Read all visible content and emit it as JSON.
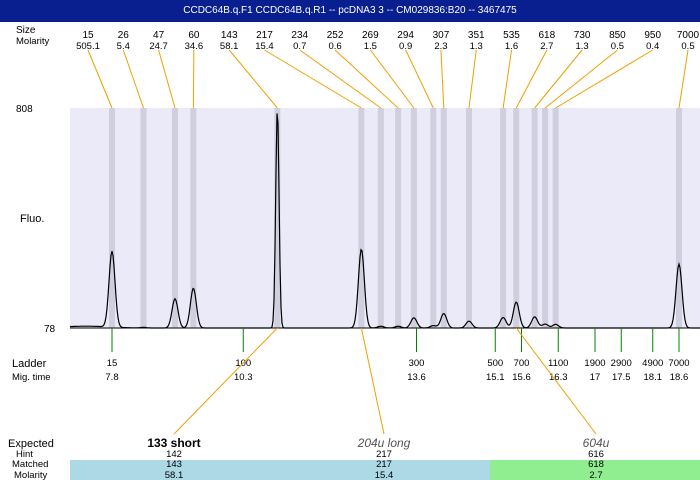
{
  "window": {
    "title": "CCDC64B.q.F1  CCDC64B.q.R1 -- pcDNA3 3 -- CM029836:B20 -- 3467475"
  },
  "labels": {
    "size": "Size",
    "molarity": "Molarity",
    "fluo": "Fluo.",
    "ladder": "Ladder",
    "mig_time": "Mig. time",
    "expected": "Expected",
    "hint": "Hint",
    "matched": "Matched",
    "molarity_bottom": "Molarity"
  },
  "colors": {
    "title_bar": "#0a1f8f",
    "plot_background": "#eaeaf8",
    "peak_band": "#cfcfe0",
    "leader_line": "#f0a000",
    "ladder_tick": "#008000",
    "blue_band": "#add8e6",
    "green_band": "#90ee90"
  },
  "chart_data": {
    "type": "line",
    "y_axis": {
      "top_label": "808",
      "bottom_label": "78",
      "ylim": [
        78,
        808
      ]
    },
    "peaks": [
      {
        "size": "15",
        "molarity": "505.1",
        "time": 7.8,
        "fluo": 330
      },
      {
        "size": "26",
        "molarity": "5.4",
        "time": 8.4,
        "fluo": 80
      },
      {
        "size": "47",
        "molarity": "24.7",
        "time": 9.0,
        "fluo": 175
      },
      {
        "size": "60",
        "molarity": "34.6",
        "time": 9.35,
        "fluo": 210
      },
      {
        "size": "143",
        "molarity": "58.1",
        "time": 10.95,
        "fluo": 808
      },
      {
        "size": "217",
        "molarity": "15.4",
        "time": 12.55,
        "fluo": 340
      },
      {
        "size": "234",
        "molarity": "0.7",
        "time": 12.92,
        "fluo": 84
      },
      {
        "size": "252",
        "molarity": "0.6",
        "time": 13.25,
        "fluo": 84
      },
      {
        "size": "269",
        "molarity": "1.5",
        "time": 13.55,
        "fluo": 112
      },
      {
        "size": "294",
        "molarity": "0.9",
        "time": 13.92,
        "fluo": 86
      },
      {
        "size": "307",
        "molarity": "2.3",
        "time": 14.12,
        "fluo": 126
      },
      {
        "size": "351",
        "molarity": "1.3",
        "time": 14.6,
        "fluo": 101
      },
      {
        "size": "535",
        "molarity": "1.6",
        "time": 15.25,
        "fluo": 113
      },
      {
        "size": "618",
        "molarity": "2.7",
        "time": 15.5,
        "fluo": 164
      },
      {
        "size": "730",
        "molarity": "1.3",
        "time": 15.85,
        "fluo": 115
      },
      {
        "size": "850",
        "molarity": "0.5",
        "time": 16.05,
        "fluo": 91
      },
      {
        "size": "950",
        "molarity": "0.4",
        "time": 16.25,
        "fluo": 90
      },
      {
        "size": "7000",
        "molarity": "0.5",
        "time": 18.6,
        "fluo": 290
      }
    ],
    "ladder": [
      {
        "size": "15",
        "time": "7.8"
      },
      {
        "size": "100",
        "time": "10.3"
      },
      {
        "size": "300",
        "time": "13.6"
      },
      {
        "size": "500",
        "time": "15.1"
      },
      {
        "size": "700",
        "time": "15.6"
      },
      {
        "size": "1100",
        "time": "16.3"
      },
      {
        "size": "1900",
        "time": "17"
      },
      {
        "size": "2900",
        "time": "17.5"
      },
      {
        "size": "4900",
        "time": "18.1"
      },
      {
        "size": "7000",
        "time": "18.6"
      }
    ],
    "expected": [
      {
        "name": "133 short",
        "style": "bold",
        "hint": "142",
        "matched": "143",
        "molarity": "58.1",
        "band": "blue",
        "peak_index": 4
      },
      {
        "name": "204u long",
        "style": "italic",
        "hint": "217",
        "matched": "217",
        "molarity": "15.4",
        "band": "blue",
        "peak_index": 5
      },
      {
        "name": "604u",
        "style": "italic",
        "hint": "616",
        "matched": "618",
        "molarity": "2.7",
        "band": "green",
        "peak_index": 13
      }
    ]
  }
}
